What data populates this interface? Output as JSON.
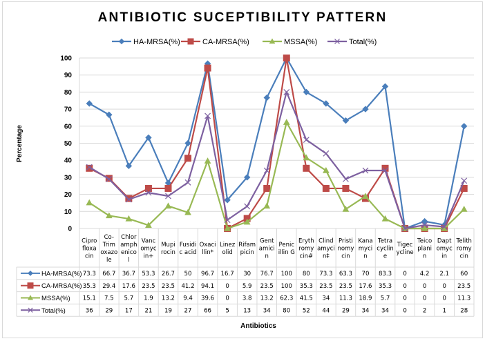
{
  "chart_data": {
    "type": "line",
    "title": "ANTIBIOTIC SUCEPTIBILITY PATTERN",
    "xlabel": "Antibiotics",
    "ylabel": "Percentage",
    "ylim": [
      0,
      100
    ],
    "yticks": [
      0,
      10,
      20,
      30,
      40,
      50,
      60,
      70,
      80,
      90,
      100
    ],
    "grid": true,
    "legend_position": "top",
    "data_table": true,
    "categories": [
      [
        "Cipro",
        "floxa",
        "cin"
      ],
      [
        "Co-",
        "Trim",
        "oxazo",
        "le"
      ],
      [
        "Chlor",
        "amph",
        "enico",
        "l"
      ],
      [
        "Vanc",
        "omyc",
        "in+"
      ],
      [
        "Mupi",
        "rocin"
      ],
      [
        "Fusidi",
        "c acid"
      ],
      [
        "Oxaci",
        "llin*"
      ],
      [
        "Linez",
        "olid"
      ],
      [
        "Rifam",
        "picin"
      ],
      [
        "Gent",
        "amici",
        "n"
      ],
      [
        "Penic",
        "illin G"
      ],
      [
        "Eryth",
        "romy",
        "cin#"
      ],
      [
        "Clind",
        "amyci",
        "n‡"
      ],
      [
        "Pristi",
        "nomy",
        "cin"
      ],
      [
        "Kana",
        "myci",
        "n"
      ],
      [
        "Tetra",
        "cyclin",
        "e"
      ],
      [
        "Tigec",
        "ycline"
      ],
      [
        "Teico",
        "plani",
        "n"
      ],
      [
        "Dapt",
        "omyc",
        "in"
      ],
      [
        "Telith",
        "romy",
        "cin"
      ]
    ],
    "series": [
      {
        "name": "HA-MRSA(%)",
        "color": "#4a7ebb",
        "marker": "diamond",
        "values": [
          73.3,
          66.7,
          36.7,
          53.3,
          26.7,
          50,
          96.7,
          16.7,
          30,
          76.7,
          100,
          80,
          73.3,
          63.3,
          70,
          83.3,
          0,
          4.2,
          2.1,
          60
        ]
      },
      {
        "name": "CA-MRSA(%)",
        "color": "#be4b48",
        "marker": "square",
        "values": [
          35.3,
          29.4,
          17.6,
          23.5,
          23.5,
          41.2,
          94.1,
          0,
          5.9,
          23.5,
          100,
          35.3,
          23.5,
          23.5,
          17.6,
          35.3,
          0,
          0,
          0,
          23.5
        ]
      },
      {
        "name": "MSSA(%)",
        "color": "#98b954",
        "marker": "triangle",
        "values": [
          15.1,
          7.5,
          5.7,
          1.9,
          13.2,
          9.4,
          39.6,
          0,
          3.8,
          13.2,
          62.3,
          41.5,
          34,
          11.3,
          18.9,
          5.7,
          0,
          0,
          0,
          11.3
        ]
      },
      {
        "name": "Total(%)",
        "color": "#7d60a0",
        "marker": "x",
        "values": [
          36,
          29,
          17,
          21,
          19,
          27,
          66,
          5,
          13,
          34,
          80,
          52,
          44,
          29,
          34,
          34,
          0,
          2,
          1,
          28
        ]
      }
    ],
    "table_cells": [
      [
        "73.3",
        "66.7",
        "36.7",
        "53.3",
        "26.7",
        "50",
        "96.7",
        "16.7",
        "30",
        "76.7",
        "100",
        "80",
        "73.3",
        "63.3",
        "70",
        "83.3",
        "0",
        "4.2",
        "2.1",
        "60"
      ],
      [
        "35.3",
        "29.4",
        "17.6",
        "23.5",
        "23.5",
        "41.2",
        "94.1",
        "0",
        "5.9",
        "23.5",
        "100",
        "35.3",
        "23.5",
        "23.5",
        "17.6",
        "35.3",
        "0",
        "0",
        "0",
        "23.5"
      ],
      [
        "15.1",
        "7.5",
        "5.7",
        "1.9",
        "13.2",
        "9.4",
        "39.6",
        "0",
        "3.8",
        "13.2",
        "62.3",
        "41.5",
        "34",
        "11.3",
        "18.9",
        "5.7",
        "0",
        "0",
        "0",
        "11.3"
      ],
      [
        "36",
        "29",
        "17",
        "21",
        "19",
        "27",
        "66",
        "5",
        "13",
        "34",
        "80",
        "52",
        "44",
        "29",
        "34",
        "34",
        "0",
        "2",
        "1",
        "28"
      ]
    ]
  }
}
